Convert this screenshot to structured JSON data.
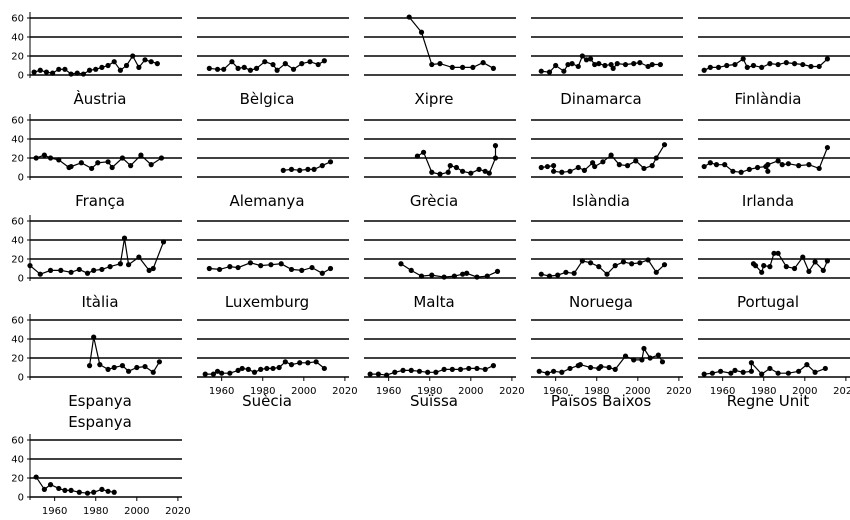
{
  "chart_data": {
    "type": "line",
    "layout": "small-multiples",
    "y_ticks": [
      0,
      20,
      40,
      60
    ],
    "x_ticks": [
      1960,
      1980,
      2000,
      2020
    ],
    "xlim": [
      1948,
      2022
    ],
    "ylim": [
      0,
      60
    ],
    "grid": "horizontal",
    "panels": [
      {
        "name": "Àustria",
        "y_axis": true,
        "x_axis": false,
        "x": [
          1950,
          1953,
          1956,
          1959,
          1962,
          1965,
          1968,
          1971,
          1974,
          1977,
          1980,
          1983,
          1986,
          1989,
          1992,
          1995,
          1998,
          2001,
          2004,
          2007,
          2010
        ],
        "y": [
          3,
          5,
          3,
          2,
          6,
          6,
          1,
          2,
          1,
          5,
          6,
          8,
          10,
          14,
          5,
          10,
          20,
          8,
          16,
          14,
          12
        ]
      },
      {
        "name": "Bèlgica",
        "y_axis": false,
        "x_axis": false,
        "x": [
          1954,
          1958,
          1961,
          1965,
          1968,
          1971,
          1974,
          1977,
          1981,
          1985,
          1987,
          1991,
          1995,
          1999,
          2003,
          2007,
          2010
        ],
        "y": [
          7,
          6,
          6,
          14,
          7,
          8,
          5,
          7,
          14,
          11,
          5,
          12,
          6,
          12,
          14,
          11,
          15
        ]
      },
      {
        "name": "Xipre",
        "y_axis": false,
        "x_axis": false,
        "x": [
          1970,
          1976,
          1981,
          1985,
          1991,
          1996,
          2001,
          2006,
          2011
        ],
        "y": [
          61,
          45,
          11,
          12,
          8,
          8,
          8,
          13,
          7
        ]
      },
      {
        "name": "Dinamarca",
        "y_axis": false,
        "x_axis": false,
        "x": [
          1953,
          1957,
          1960,
          1964,
          1966,
          1968,
          1971,
          1973,
          1975,
          1977,
          1979,
          1981,
          1984,
          1987,
          1988,
          1990,
          1994,
          1998,
          2001,
          2005,
          2007,
          2011
        ],
        "y": [
          4,
          3,
          10,
          4,
          11,
          12,
          9,
          20,
          16,
          17,
          11,
          12,
          10,
          11,
          7,
          12,
          11,
          12,
          13,
          9,
          11,
          11
        ]
      },
      {
        "name": "Finlàndia",
        "y_axis": false,
        "x_axis": false,
        "x": [
          1951,
          1954,
          1958,
          1962,
          1966,
          1970,
          1972,
          1975,
          1979,
          1983,
          1987,
          1991,
          1995,
          1999,
          2003,
          2007,
          2011
        ],
        "y": [
          5,
          8,
          8,
          10,
          11,
          17,
          8,
          10,
          8,
          12,
          11,
          13,
          12,
          11,
          9,
          9,
          17
        ]
      },
      {
        "name": "França",
        "y_axis": true,
        "x_axis": false,
        "x": [
          1951,
          1955,
          1958,
          1962,
          1967,
          1968,
          1973,
          1978,
          1981,
          1986,
          1988,
          1993,
          1997,
          2002,
          2007,
          2012
        ],
        "y": [
          20,
          23,
          20,
          18,
          10,
          11,
          15,
          9,
          15,
          16,
          10,
          20,
          12,
          23,
          13,
          20
        ]
      },
      {
        "name": "Alemanya",
        "y_axis": false,
        "x_axis": false,
        "x": [
          1990,
          1994,
          1998,
          2002,
          2005,
          2009,
          2013
        ],
        "y": [
          7,
          8,
          7,
          8,
          8,
          12,
          16
        ]
      },
      {
        "name": "Grècia",
        "y_axis": false,
        "x_axis": false,
        "x": [
          1974,
          1977,
          1981,
          1985,
          1989,
          1990,
          1993,
          1996,
          2000,
          2004,
          2007,
          2009,
          2012,
          2012
        ],
        "y": [
          22,
          26,
          5,
          3,
          5,
          12,
          10,
          6,
          4,
          8,
          6,
          4,
          20,
          33
        ]
      },
      {
        "name": "Islàndia",
        "y_axis": false,
        "x_axis": false,
        "x": [
          1953,
          1956,
          1959,
          1959,
          1963,
          1967,
          1971,
          1974,
          1978,
          1979,
          1983,
          1987,
          1991,
          1995,
          1999,
          2003,
          2007,
          2009,
          2013
        ],
        "y": [
          10,
          11,
          12,
          6,
          5,
          6,
          10,
          7,
          15,
          11,
          16,
          23,
          13,
          12,
          17,
          9,
          12,
          20,
          34
        ]
      },
      {
        "name": "Irlanda",
        "y_axis": false,
        "x_axis": false,
        "x": [
          1951,
          1954,
          1957,
          1961,
          1965,
          1969,
          1973,
          1977,
          1981,
          1982,
          1982,
          1987,
          1989,
          1992,
          1997,
          2002,
          2007,
          2011
        ],
        "y": [
          11,
          15,
          13,
          13,
          6,
          5,
          8,
          10,
          11,
          6,
          13,
          17,
          13,
          14,
          12,
          13,
          9,
          31
        ]
      },
      {
        "name": "Itàlia",
        "y_axis": true,
        "x_axis": false,
        "x": [
          1948,
          1953,
          1958,
          1963,
          1968,
          1972,
          1976,
          1979,
          1983,
          1987,
          1992,
          1994,
          1996,
          2001,
          2006,
          2008,
          2013
        ],
        "y": [
          13,
          4,
          8,
          8,
          6,
          9,
          5,
          8,
          9,
          12,
          15,
          42,
          14,
          22,
          8,
          10,
          38
        ]
      },
      {
        "name": "Luxemburg",
        "y_axis": false,
        "x_axis": false,
        "x": [
          1954,
          1959,
          1964,
          1968,
          1974,
          1979,
          1984,
          1989,
          1994,
          1999,
          2004,
          2009,
          2013
        ],
        "y": [
          10,
          9,
          12,
          11,
          16,
          13,
          14,
          15,
          9,
          8,
          11,
          5,
          10
        ]
      },
      {
        "name": "Malta",
        "y_axis": false,
        "x_axis": false,
        "x": [
          1966,
          1971,
          1976,
          1981,
          1987,
          1992,
          1996,
          1998,
          2003,
          2008,
          2013
        ],
        "y": [
          15,
          8,
          2,
          3,
          1,
          2,
          4,
          5,
          1,
          2,
          7
        ]
      },
      {
        "name": "Noruega",
        "y_axis": false,
        "x_axis": false,
        "x": [
          1953,
          1957,
          1961,
          1965,
          1969,
          1973,
          1977,
          1981,
          1985,
          1989,
          1993,
          1997,
          2001,
          2005,
          2009,
          2013
        ],
        "y": [
          4,
          2,
          3,
          6,
          5,
          18,
          16,
          12,
          4,
          13,
          17,
          15,
          16,
          19,
          6,
          14
        ]
      },
      {
        "name": "Portugal",
        "y_axis": false,
        "x_axis": false,
        "x": [
          1975,
          1976,
          1979,
          1980,
          1983,
          1985,
          1987,
          1991,
          1995,
          1999,
          2002,
          2005,
          2009,
          2011
        ],
        "y": [
          15,
          13,
          6,
          13,
          12,
          26,
          26,
          12,
          10,
          22,
          7,
          17,
          8,
          18
        ]
      },
      {
        "name": "Espanya",
        "y_axis": true,
        "x_axis": false,
        "x": [
          1977,
          1979,
          1982,
          1986,
          1989,
          1993,
          1996,
          2000,
          2004,
          2008,
          2011
        ],
        "y": [
          12,
          42,
          13,
          8,
          10,
          12,
          6,
          10,
          11,
          5,
          16
        ]
      },
      {
        "name": "Suècia",
        "y_axis": false,
        "x_axis": true,
        "x": [
          1952,
          1956,
          1958,
          1960,
          1964,
          1968,
          1970,
          1973,
          1976,
          1979,
          1982,
          1985,
          1988,
          1991,
          1994,
          1998,
          2002,
          2006,
          2010
        ],
        "y": [
          3,
          3,
          6,
          4,
          4,
          7,
          9,
          8,
          5,
          8,
          9,
          9,
          10,
          16,
          13,
          15,
          15,
          16,
          9
        ]
      },
      {
        "name": "Suïssa",
        "y_axis": false,
        "x_axis": true,
        "x": [
          1951,
          1955,
          1959,
          1963,
          1967,
          1971,
          1975,
          1979,
          1983,
          1987,
          1991,
          1995,
          1999,
          2003,
          2007,
          2011
        ],
        "y": [
          3,
          3,
          2,
          5,
          7,
          7,
          6,
          5,
          5,
          8,
          8,
          8,
          9,
          9,
          8,
          12
        ]
      },
      {
        "name": "Països Baixos",
        "y_axis": false,
        "x_axis": true,
        "x": [
          1952,
          1956,
          1959,
          1963,
          1967,
          1971,
          1972,
          1977,
          1981,
          1982,
          1986,
          1989,
          1994,
          1998,
          2002,
          2003,
          2006,
          2010,
          2012
        ],
        "y": [
          6,
          4,
          6,
          5,
          9,
          12,
          13,
          10,
          9,
          11,
          10,
          8,
          22,
          18,
          18,
          30,
          20,
          23,
          16
        ]
      },
      {
        "name": "Regne Unit",
        "y_axis": false,
        "x_axis": true,
        "x": [
          1951,
          1955,
          1959,
          1964,
          1966,
          1970,
          1974,
          1974,
          1979,
          1983,
          1987,
          1992,
          1997,
          2001,
          2005,
          2010
        ],
        "y": [
          3,
          4,
          6,
          4,
          7,
          5,
          6,
          15,
          3,
          9,
          4,
          4,
          6,
          13,
          5,
          9
        ]
      },
      {
        "name": "Espanya",
        "y_axis": true,
        "x_axis": true,
        "caption_above": true,
        "x": [
          1951,
          1955,
          1958,
          1962,
          1965,
          1968,
          1972,
          1976,
          1979,
          1983,
          1986,
          1989
        ],
        "y": [
          21,
          8,
          13,
          9,
          7,
          7,
          5,
          4,
          5,
          8,
          6,
          5
        ]
      }
    ]
  }
}
